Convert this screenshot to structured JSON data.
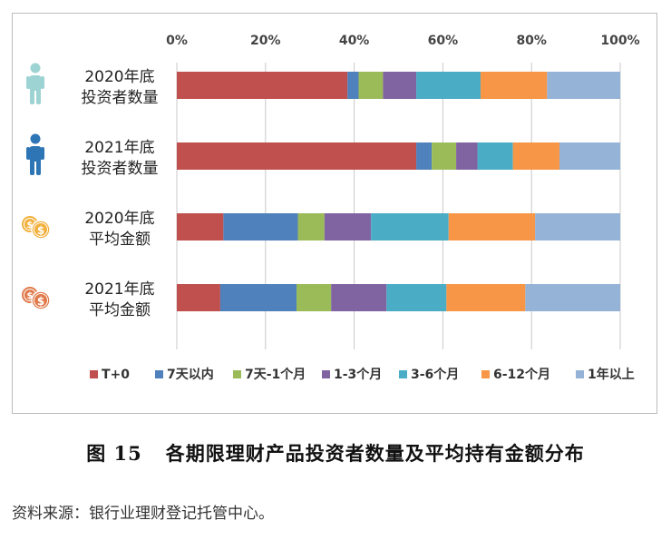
{
  "chart_data": {
    "type": "bar",
    "orientation": "horizontal",
    "stacked": true,
    "normalized": true,
    "xlim": [
      0,
      100
    ],
    "x_ticks": [
      "0%",
      "20%",
      "40%",
      "60%",
      "80%",
      "100%"
    ],
    "x_tick_values": [
      0,
      20,
      40,
      60,
      80,
      100
    ],
    "axis_position": "top",
    "grid": true,
    "legend_position": "bottom",
    "categories": [
      {
        "line1": "2020年底",
        "line2": "投资者数量",
        "icon": "person-icon",
        "icon_color": "#9ed3d3"
      },
      {
        "line1": "2021年底",
        "line2": "投资者数量",
        "icon": "person-icon",
        "icon_color": "#2e75b6"
      },
      {
        "line1": "2020年底",
        "line2": "平均金额",
        "icon": "coins-icon",
        "icon_color": "#f2b03d"
      },
      {
        "line1": "2021年底",
        "line2": "平均金额",
        "icon": "coins-icon",
        "icon_color": "#e07a4a"
      }
    ],
    "series": [
      {
        "name": "T+0",
        "color": "#c0504d",
        "values": [
          38.5,
          54.0,
          10.5,
          9.8
        ]
      },
      {
        "name": "7天以内",
        "color": "#4f81bd",
        "values": [
          2.5,
          3.5,
          16.8,
          17.2
        ]
      },
      {
        "name": "7天-1个月",
        "color": "#9bbb59",
        "values": [
          5.5,
          5.5,
          6.0,
          7.8
        ]
      },
      {
        "name": "1-3个月",
        "color": "#8064a2",
        "values": [
          7.5,
          4.8,
          10.5,
          12.5
        ]
      },
      {
        "name": "3-6个月",
        "color": "#4bacc6",
        "values": [
          14.5,
          8.0,
          17.5,
          13.5
        ]
      },
      {
        "name": "6-12个月",
        "color": "#f79646",
        "values": [
          15.0,
          10.5,
          19.5,
          17.8
        ]
      },
      {
        "name": "1年以上",
        "color": "#95b3d7",
        "values": [
          16.5,
          13.7,
          19.2,
          21.4
        ]
      }
    ]
  },
  "figure": {
    "number": "图 15",
    "title": "各期限理财产品投资者数量及平均持有金额分布"
  },
  "source_note": "资料来源：银行业理财登记托管中心。"
}
